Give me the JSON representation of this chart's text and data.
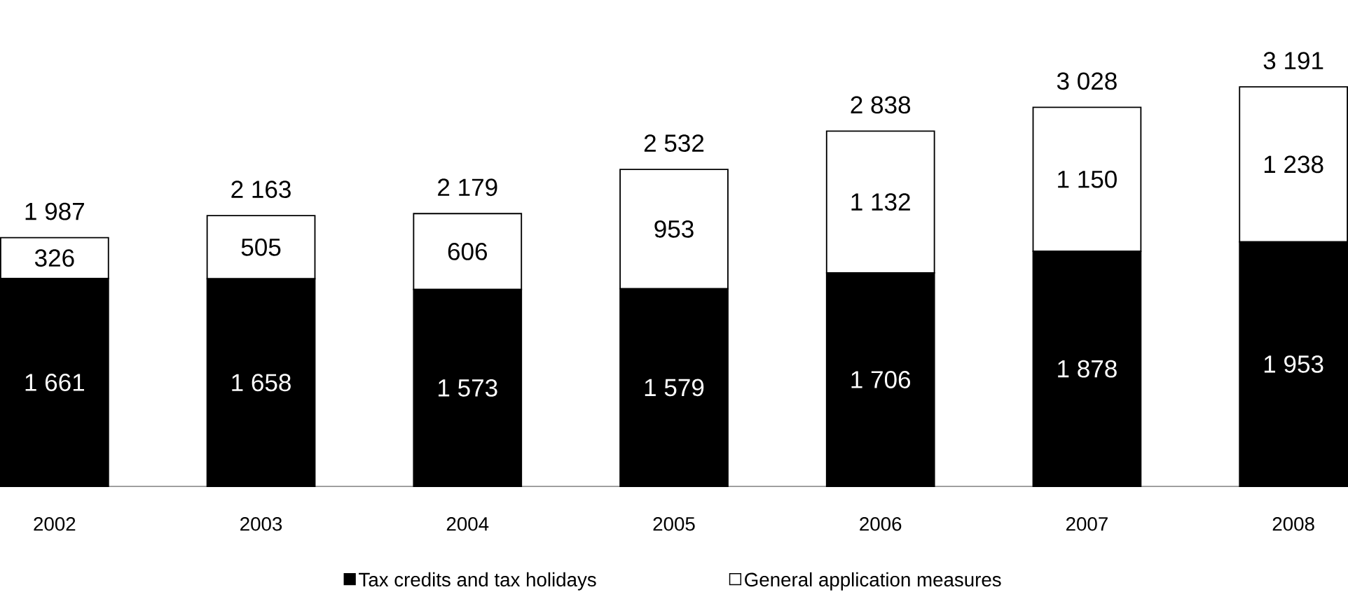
{
  "chart_data": {
    "type": "bar",
    "stacked": true,
    "legend": "bottom",
    "categories": [
      "2002",
      "2003",
      "2004",
      "2005",
      "2006",
      "2007",
      "2008"
    ],
    "series": [
      {
        "name": "Tax credits and tax holidays",
        "color": "#000000",
        "values": [
          1661,
          1658,
          1573,
          1579,
          1706,
          1878,
          1953
        ],
        "value_labels": [
          "1 661",
          "1 658",
          "1 573",
          "1 579",
          "1 706",
          "1 878",
          "1 953"
        ]
      },
      {
        "name": "General application measures",
        "color": "#ffffff",
        "values": [
          326,
          505,
          606,
          953,
          1132,
          1150,
          1238
        ],
        "value_labels": [
          "326",
          "505",
          "606",
          "953",
          "1 132",
          "1 150",
          "1 238"
        ]
      }
    ],
    "totals": [
      "1 987",
      "2 163",
      "2 179",
      "2 532",
      "2 838",
      "3 028",
      "3 191"
    ]
  }
}
